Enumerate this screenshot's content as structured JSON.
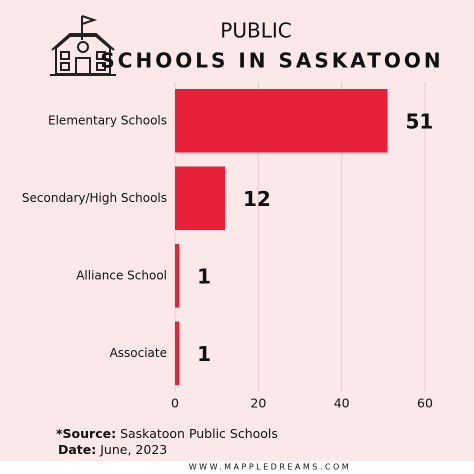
{
  "chart_data": {
    "type": "bar",
    "orientation": "horizontal",
    "title": "PUBLIC",
    "subtitle": "SCHOOLS IN SASKATOON",
    "categories": [
      "Elementary Schools",
      "Secondary/High Schools",
      "Alliance School",
      "Associate"
    ],
    "values": [
      51,
      12,
      1,
      1
    ],
    "color": "#e8213a",
    "xlim": [
      0,
      60
    ],
    "xticks": [
      0,
      20,
      40,
      60
    ],
    "grid": true,
    "source_label": "*Source:",
    "source": "Saskatoon Public Schools",
    "date_label": "Date:",
    "date": "June, 2023",
    "footer": "WWW.MAPPLEDREAMS.COM"
  }
}
